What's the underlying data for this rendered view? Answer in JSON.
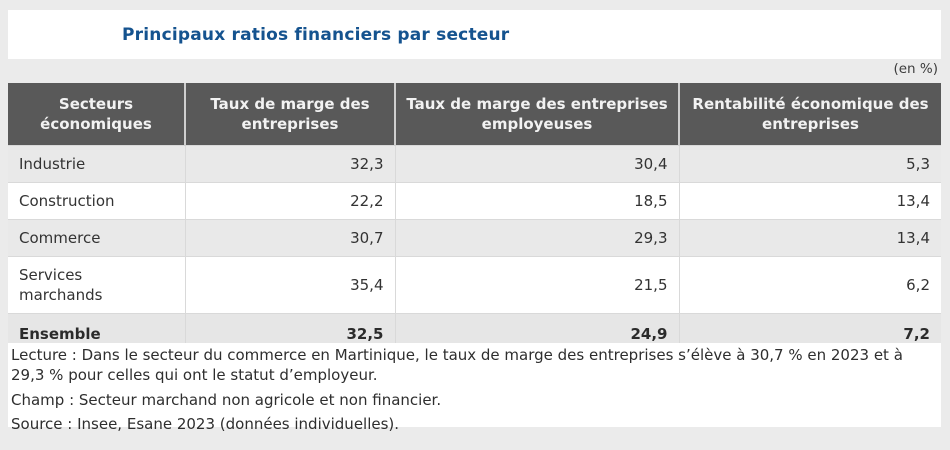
{
  "page": {
    "title": "Principaux ratios financiers par secteur",
    "unit_note": "(en %)"
  },
  "table": {
    "columns": [
      "Secteurs économiques",
      "Taux de marge des entreprises",
      "Taux de marge des entreprises employeuses",
      "Rentabilité économique des entreprises"
    ],
    "rows": [
      {
        "label": "Industrie",
        "values": [
          "32,3",
          "30,4",
          "5,3"
        ]
      },
      {
        "label": "Construction",
        "values": [
          "22,2",
          "18,5",
          "13,4"
        ]
      },
      {
        "label": "Commerce",
        "values": [
          "30,7",
          "29,3",
          "13,4"
        ]
      },
      {
        "label": "Services marchands",
        "values": [
          "35,4",
          "21,5",
          "6,2"
        ]
      },
      {
        "label": "Ensemble",
        "values": [
          "32,5",
          "24,9",
          "7,2"
        ]
      }
    ]
  },
  "notes": {
    "lecture": "Lecture : Dans le secteur du commerce en Martinique, le taux de marge des entreprises s’élève à 30,7 % en 2023 et à 29,3 % pour celles qui ont le statut d’employeur.",
    "champ": "Champ : Secteur marchand non agricole et non financier.",
    "source": "Source : Insee, Esane 2023 (données individuelles)."
  },
  "colors": {
    "title_blue": "#15538f",
    "header_bg": "#595959",
    "header_text": "#f2f2f2",
    "row_alt_bg": "#e9e9e9",
    "page_bg": "#ebebeb",
    "body_text": "#333333"
  },
  "chart_data": {
    "type": "table",
    "title": "Principaux ratios financiers par secteur",
    "unit": "en %",
    "columns": [
      "Secteurs économiques",
      "Taux de marge des entreprises",
      "Taux de marge des entreprises employeuses",
      "Rentabilité économique des entreprises"
    ],
    "rows": [
      [
        "Industrie",
        32.3,
        30.4,
        5.3
      ],
      [
        "Construction",
        22.2,
        18.5,
        13.4
      ],
      [
        "Commerce",
        30.7,
        29.3,
        13.4
      ],
      [
        "Services marchands",
        35.4,
        21.5,
        6.2
      ],
      [
        "Ensemble",
        32.5,
        24.9,
        7.2
      ]
    ],
    "notes": [
      "Lecture : Dans le secteur du commerce en Martinique, le taux de marge des entreprises s’élève à 30,7 % en 2023 et à 29,3 % pour celles qui ont le statut d’employeur.",
      "Champ : Secteur marchand non agricole et non financier.",
      "Source : Insee, Esane 2023 (données individuelles)."
    ]
  }
}
